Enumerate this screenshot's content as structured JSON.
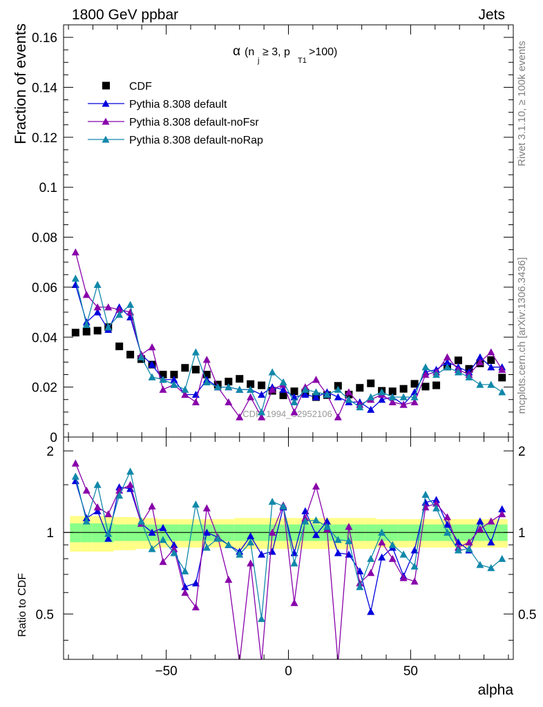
{
  "header": {
    "left": "1800 GeV ppbar",
    "right": "Jets"
  },
  "side_labels": {
    "top": "Rivet 3.1.10, ≥ 100k events",
    "bottom": "mcplots.cern.ch [arXiv:1306.3436]"
  },
  "watermark": "CDF_1994_S2952106",
  "colors": {
    "cdf": "#000000",
    "default": "#0000dd",
    "noFsr": "#8800aa",
    "noRap": "#1188aa",
    "band_outer": "#ffff88",
    "band_inner": "#88ff88"
  },
  "chart_data": [
    {
      "type": "scatter",
      "panel": "main",
      "title_parts": {
        "alpha": "α",
        "pre": " (n",
        "sub1": "j",
        "mid": " ≥ 3, p",
        "sub2": "T1",
        "post": ">100)"
      },
      "xlabel": "",
      "ylabel": "Fraction of events",
      "xlim": [
        -92,
        92
      ],
      "ylim": [
        0,
        0.165
      ],
      "yticks": [
        0,
        0.02,
        0.04,
        0.06,
        0.08,
        0.1,
        0.12,
        0.14,
        0.16
      ],
      "ytick_labels": [
        "0",
        "0.02",
        "0.04",
        "0.06",
        "0.08",
        "0.1",
        "0.12",
        "0.14",
        "0.16"
      ],
      "x": [
        -87.1,
        -82.6,
        -78.1,
        -73.7,
        -69.2,
        -64.7,
        -60.2,
        -55.8,
        -51.3,
        -46.8,
        -42.3,
        -37.9,
        -33.4,
        -28.9,
        -24.5,
        -20.0,
        -15.5,
        -11.0,
        -6.6,
        -2.1,
        2.4,
        6.9,
        11.3,
        15.8,
        20.3,
        24.7,
        29.2,
        33.7,
        38.2,
        42.6,
        47.1,
        51.6,
        56.1,
        60.5,
        65.0,
        69.5,
        73.9,
        78.4,
        82.9,
        87.4
      ],
      "legend_position": "top-left",
      "series": [
        {
          "name": "CDF",
          "marker": "square",
          "color": "#000000",
          "line": false,
          "values": [
            0.0418,
            0.0422,
            0.0426,
            0.044,
            0.0363,
            0.033,
            0.0312,
            0.029,
            0.025,
            0.025,
            0.0277,
            0.027,
            0.025,
            0.021,
            0.0222,
            0.0233,
            0.0212,
            0.0207,
            0.0185,
            0.0167,
            0.0183,
            0.0178,
            0.016,
            0.0168,
            0.0205,
            0.017,
            0.0197,
            0.0215,
            0.0185,
            0.0183,
            0.0193,
            0.0213,
            0.0202,
            0.0207,
            0.0282,
            0.0307,
            0.0273,
            0.0295,
            0.0308,
            0.0238
          ]
        },
        {
          "name": "Pythia 8.308 default",
          "marker": "triangle",
          "color": "#0000dd",
          "line": true,
          "values": [
            0.061,
            0.046,
            0.05,
            0.043,
            0.052,
            0.048,
            0.033,
            0.029,
            0.023,
            0.023,
            0.017,
            0.017,
            0.023,
            0.02,
            0.02,
            0.019,
            0.019,
            0.017,
            0.02,
            0.019,
            0.016,
            0.017,
            0.016,
            0.018,
            0.016,
            0.014,
            0.014,
            0.011,
            0.015,
            0.016,
            0.013,
            0.018,
            0.026,
            0.027,
            0.03,
            0.028,
            0.026,
            0.032,
            0.028,
            0.028
          ]
        },
        {
          "name": "Pythia 8.308 default-noFsr",
          "marker": "triangle",
          "color": "#8800aa",
          "line": true,
          "values": [
            0.074,
            0.057,
            0.052,
            0.052,
            0.051,
            0.05,
            0.033,
            0.036,
            0.019,
            0.021,
            0.017,
            0.014,
            0.031,
            0.02,
            0.014,
            0.008,
            0.016,
            0.008,
            0.019,
            0.021,
            0.01,
            0.02,
            0.023,
            0.017,
            0.008,
            0.018,
            0.013,
            0.015,
            0.017,
            0.014,
            0.013,
            0.014,
            0.025,
            0.026,
            0.032,
            0.027,
            0.025,
            0.03,
            0.034,
            0.027
          ]
        },
        {
          "name": "Pythia 8.308 default-noRap",
          "marker": "triangle",
          "color": "#1188aa",
          "line": true,
          "values": [
            0.0635,
            0.045,
            0.061,
            0.044,
            0.049,
            0.053,
            0.032,
            0.024,
            0.023,
            0.021,
            0.019,
            0.034,
            0.022,
            0.02,
            0.02,
            0.019,
            0.019,
            0.01,
            0.026,
            0.022,
            0.014,
            0.019,
            0.018,
            0.017,
            0.019,
            0.015,
            0.012,
            0.016,
            0.018,
            0.016,
            0.016,
            0.016,
            0.028,
            0.025,
            0.028,
            0.026,
            0.024,
            0.021,
            0.021,
            0.018
          ]
        }
      ]
    },
    {
      "type": "line",
      "panel": "ratio",
      "xlabel": "alpha",
      "ylabel": "Ratio to CDF",
      "xlim": [
        -92,
        92
      ],
      "ylim": [
        0.34,
        2.25
      ],
      "yticks": [
        0.5,
        1,
        2
      ],
      "ytick_labels": [
        "0.5",
        "1",
        "2"
      ],
      "xticks": [
        -50,
        0,
        50
      ],
      "xtick_labels": [
        "−50",
        "0",
        "50"
      ],
      "x": [
        -87.1,
        -82.6,
        -78.1,
        -73.7,
        -69.2,
        -64.7,
        -60.2,
        -55.8,
        -51.3,
        -46.8,
        -42.3,
        -37.9,
        -33.4,
        -28.9,
        -24.5,
        -20.0,
        -15.5,
        -11.0,
        -6.6,
        -2.1,
        2.4,
        6.9,
        11.3,
        15.8,
        20.3,
        24.7,
        29.2,
        33.7,
        38.2,
        42.6,
        47.1,
        51.6,
        56.1,
        60.5,
        65.0,
        69.5,
        73.9,
        78.4,
        82.9,
        87.4
      ],
      "bands": {
        "outer": [
          0.15,
          0.15,
          0.15,
          0.15,
          0.14,
          0.14,
          0.13,
          0.13,
          0.12,
          0.12,
          0.12,
          0.12,
          0.12,
          0.12,
          0.12,
          0.13,
          0.13,
          0.13,
          0.13,
          0.13,
          0.13,
          0.13,
          0.13,
          0.13,
          0.13,
          0.13,
          0.13,
          0.13,
          0.12,
          0.12,
          0.12,
          0.12,
          0.12,
          0.12,
          0.12,
          0.12,
          0.12,
          0.12,
          0.12,
          0.12
        ],
        "inner": [
          0.08,
          0.08,
          0.08,
          0.08,
          0.07,
          0.07,
          0.07,
          0.07,
          0.07,
          0.07,
          0.07,
          0.07,
          0.07,
          0.07,
          0.07,
          0.07,
          0.07,
          0.07,
          0.07,
          0.07,
          0.07,
          0.07,
          0.07,
          0.07,
          0.07,
          0.07,
          0.07,
          0.07,
          0.07,
          0.07,
          0.07,
          0.07,
          0.07,
          0.07,
          0.07,
          0.07,
          0.07,
          0.07,
          0.07,
          0.07
        ]
      },
      "series": [
        {
          "name": "Pythia 8.308 default",
          "color": "#0000dd",
          "values": [
            1.55,
            1.13,
            1.2,
            0.95,
            1.47,
            1.45,
            1.08,
            1.0,
            1.04,
            0.9,
            0.63,
            0.65,
            1.0,
            0.96,
            0.9,
            0.85,
            0.97,
            0.83,
            0.85,
            1.24,
            0.84,
            1.2,
            0.98,
            1.1,
            0.84,
            0.83,
            0.72,
            0.51,
            0.81,
            0.88,
            0.69,
            0.86,
            1.29,
            1.32,
            1.07,
            0.92,
            0.86,
            1.1,
            0.92,
            1.22
          ]
        },
        {
          "name": "Pythia 8.308 default-noFsr",
          "color": "#8800aa",
          "values": [
            1.8,
            1.43,
            1.24,
            1.17,
            1.43,
            1.5,
            1.08,
            1.25,
            0.78,
            0.87,
            0.6,
            0.53,
            1.23,
            0.96,
            0.67,
            0.33,
            0.77,
            0.33,
            1.0,
            1.26,
            0.55,
            1.13,
            1.48,
            1.03,
            0.33,
            1.05,
            0.65,
            0.71,
            0.92,
            0.8,
            0.68,
            0.66,
            1.24,
            1.28,
            1.14,
            0.88,
            0.92,
            1.03,
            1.1,
            1.17
          ]
        },
        {
          "name": "Pythia 8.308 default-noRap",
          "color": "#1188aa",
          "values": [
            1.61,
            1.1,
            1.5,
            0.99,
            1.37,
            1.68,
            1.1,
            0.87,
            0.94,
            0.84,
            0.72,
            1.27,
            0.88,
            0.95,
            0.9,
            0.83,
            0.92,
            0.48,
            1.3,
            1.25,
            0.77,
            1.1,
            1.11,
            1.05,
            0.94,
            0.93,
            0.63,
            0.8,
            1.0,
            0.9,
            0.83,
            0.75,
            1.38,
            1.23,
            1.0,
            0.86,
            0.87,
            0.76,
            0.74,
            0.8
          ]
        }
      ]
    }
  ]
}
